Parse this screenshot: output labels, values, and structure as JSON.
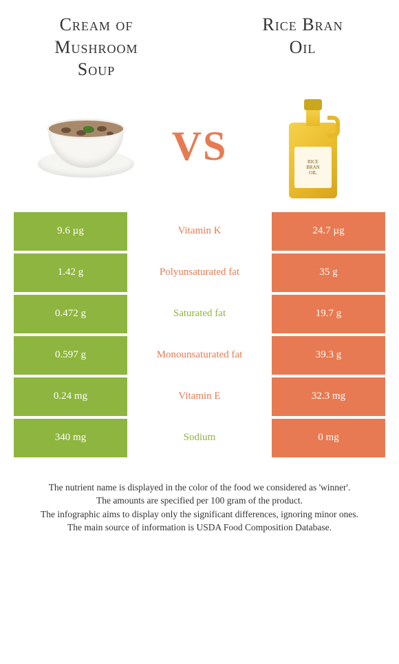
{
  "left_food": {
    "title": "Cream of\nMushroom\nSoup"
  },
  "right_food": {
    "title": "Rice Bran\nOil"
  },
  "vs_label": "VS",
  "colors": {
    "left_bg": "#8eb53f",
    "right_bg": "#e77a52",
    "mid_left_text": "#8eb53f",
    "mid_right_text": "#e77a52"
  },
  "rows": [
    {
      "left": "9.6 µg",
      "mid": "Vitamin K",
      "mid_color": "right",
      "right": "24.7 µg"
    },
    {
      "left": "1.42 g",
      "mid": "Polyunsaturated fat",
      "mid_color": "right",
      "right": "35 g"
    },
    {
      "left": "0.472 g",
      "mid": "Saturated fat",
      "mid_color": "left",
      "right": "19.7 g"
    },
    {
      "left": "0.597 g",
      "mid": "Monounsaturated fat",
      "mid_color": "right",
      "right": "39.3 g"
    },
    {
      "left": "0.24 mg",
      "mid": "Vitamin E",
      "mid_color": "right",
      "right": "32.3 mg"
    },
    {
      "left": "340 mg",
      "mid": "Sodium",
      "mid_color": "left",
      "right": "0 mg"
    }
  ],
  "footer_lines": [
    "The nutrient name is displayed in the color of the food we considered as 'winner'.",
    "The amounts are specified per 100 gram of the product.",
    "The infographic aims to display only the significant differences, ignoring minor ones.",
    "The main source of information is USDA Food Composition Database."
  ],
  "bottle_label_text": "RICE\nBRAN\nOIL"
}
